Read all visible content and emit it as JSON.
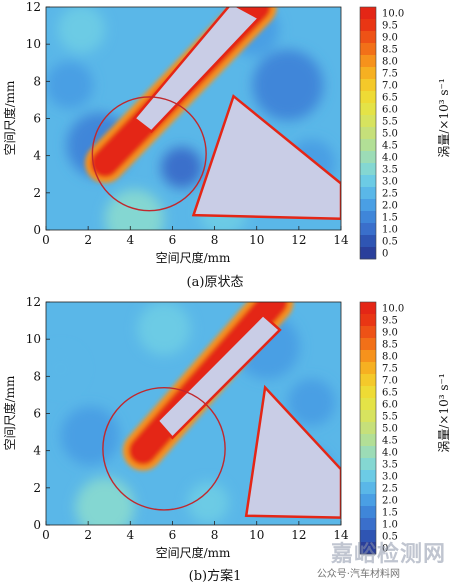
{
  "chart_data": [
    {
      "type": "heatmap",
      "caption": "(a)原状态",
      "xlabel": "空间尺度/mm",
      "ylabel": "空间尺度/mm",
      "xlim": [
        0,
        14
      ],
      "ylim": [
        0,
        12
      ],
      "xticks": [
        0,
        2,
        4,
        6,
        8,
        10,
        12,
        14
      ],
      "yticks": [
        0,
        2,
        4,
        6,
        8,
        10,
        12
      ],
      "colorbar": {
        "label": "涡量/×10³ s⁻¹",
        "min": 0,
        "max": 10,
        "step": 0.5,
        "ticks": [
          "10.0",
          "9.5",
          "9.0",
          "8.5",
          "8.0",
          "7.5",
          "7.0",
          "6.5",
          "6.0",
          "5.5",
          "5.0",
          "4.5",
          "4.0",
          "3.5",
          "3.0",
          "2.5",
          "2.0",
          "1.5",
          "1.0",
          "0.5",
          "0"
        ]
      },
      "background_level": 2.5,
      "plates": [
        {
          "name": "upper plate",
          "corners": [
            [
              5.0,
              5.3
            ],
            [
              10.1,
              11.4
            ],
            [
              8.8,
              12.2
            ],
            [
              4.2,
              6.0
            ]
          ]
        },
        {
          "name": "lower plate",
          "corners": [
            [
              7.0,
              0.8
            ],
            [
              14.0,
              0.6
            ],
            [
              14.0,
              2.5
            ],
            [
              8.9,
              7.2
            ]
          ]
        }
      ],
      "high_vorticity_band": {
        "from": [
          2.8,
          3.6
        ],
        "to": [
          10.0,
          12.0
        ],
        "level": 10.0
      },
      "circle": {
        "center": [
          4.9,
          4.1
        ],
        "radius": 2.7
      }
    },
    {
      "type": "heatmap",
      "caption": "(b)方案1",
      "xlabel": "空间尺度/mm",
      "ylabel": "空间尺度/mm",
      "xlim": [
        0,
        14
      ],
      "ylim": [
        0,
        12
      ],
      "xticks": [
        0,
        2,
        4,
        6,
        8,
        10,
        12,
        14
      ],
      "yticks": [
        0,
        2,
        4,
        6,
        8,
        10,
        12
      ],
      "colorbar": {
        "label": "涡量/×10³ s⁻¹",
        "min": 0,
        "max": 10,
        "step": 0.5,
        "ticks": [
          "10.0",
          "9.5",
          "9.0",
          "8.5",
          "8.0",
          "7.5",
          "7.0",
          "6.5",
          "6.0",
          "5.5",
          "5.0",
          "4.5",
          "4.0",
          "3.5",
          "3.0",
          "2.5",
          "2.0",
          "1.5",
          "1.0",
          "0.5",
          "0"
        ]
      },
      "background_level": 2.5,
      "plates": [
        {
          "name": "upper plate",
          "corners": [
            [
              6.0,
              4.7
            ],
            [
              11.1,
              10.5
            ],
            [
              10.3,
              11.3
            ],
            [
              5.3,
              5.6
            ]
          ]
        },
        {
          "name": "lower plate",
          "corners": [
            [
              9.5,
              0.5
            ],
            [
              14.0,
              0.4
            ],
            [
              14.0,
              3.0
            ],
            [
              10.4,
              7.4
            ]
          ]
        }
      ],
      "high_vorticity_band": {
        "from": [
          4.6,
          4.0
        ],
        "to": [
          10.8,
          12.0
        ],
        "level": 10.0
      },
      "circle": {
        "center": [
          5.6,
          4.1
        ],
        "radius": 2.9
      }
    }
  ],
  "watermark": {
    "main": "嘉峪检测网",
    "small": "公众号·汽车材料网"
  }
}
